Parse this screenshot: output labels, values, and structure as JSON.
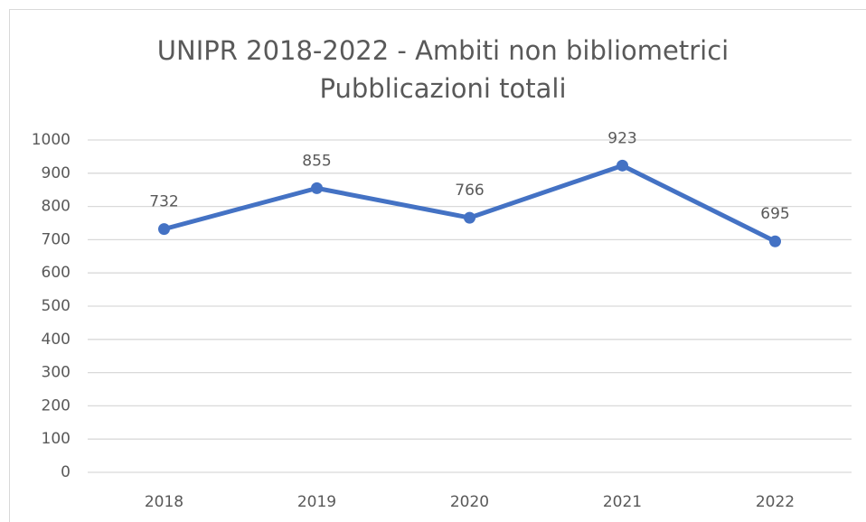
{
  "chart_data": {
    "type": "line",
    "title": [
      "UNIPR 2018-2022 - Ambiti non bibliometrici",
      "Pubblicazioni totali"
    ],
    "categories": [
      "2018",
      "2019",
      "2020",
      "2021",
      "2022"
    ],
    "series": [
      {
        "name": "Pubblicazioni totali",
        "color": "#4472c4",
        "values": [
          732,
          855,
          766,
          923,
          695
        ]
      }
    ],
    "ylim": [
      0,
      1000
    ],
    "yticks": [
      0,
      100,
      200,
      300,
      400,
      500,
      600,
      700,
      800,
      900,
      1000
    ],
    "grid": true,
    "legend": false
  }
}
